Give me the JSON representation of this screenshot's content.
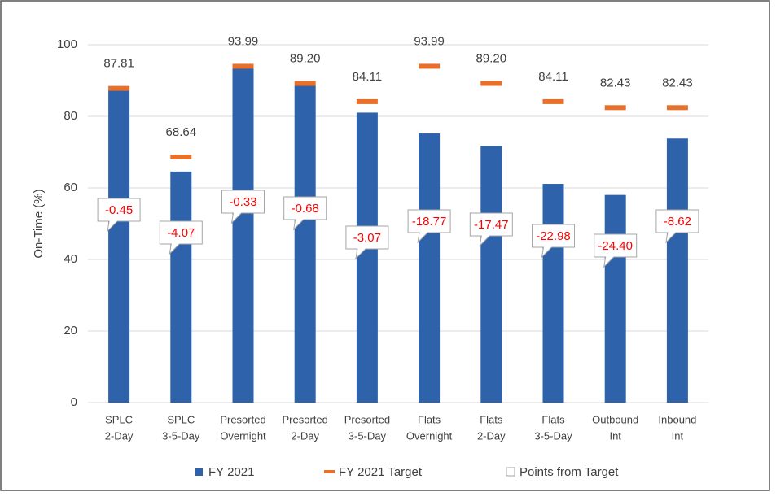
{
  "chart_data": {
    "type": "bar",
    "categories": [
      [
        "SPLC",
        "2-Day"
      ],
      [
        "SPLC",
        "3-5-Day"
      ],
      [
        "Presorted",
        "Overnight"
      ],
      [
        "Presorted",
        "2-Day"
      ],
      [
        "Presorted",
        "3-5-Day"
      ],
      [
        "Flats",
        "Overnight"
      ],
      [
        "Flats",
        "2-Day"
      ],
      [
        "Flats",
        "3-5-Day"
      ],
      [
        "Outbound",
        "Int"
      ],
      [
        "Inbound",
        "Int"
      ]
    ],
    "series": [
      {
        "name": "FY 2021",
        "color": "#2e63ab",
        "values": [
          87.36,
          64.57,
          93.66,
          88.52,
          81.04,
          75.22,
          71.73,
          61.13,
          58.03,
          73.81
        ]
      },
      {
        "name": "FY 2021 Target",
        "color": "#e8702a",
        "values": [
          87.81,
          68.64,
          93.99,
          89.2,
          84.11,
          93.99,
          89.2,
          84.11,
          82.43,
          82.43
        ],
        "value_labels": [
          "87.81",
          "68.64",
          "93.99",
          "89.20",
          "84.11",
          "93.99",
          "89.20",
          "84.11",
          "82.43",
          "82.43"
        ]
      },
      {
        "name": "Points from Target",
        "color": "#ff0000",
        "values": [
          -0.45,
          -4.07,
          -0.33,
          -0.68,
          -3.07,
          -18.77,
          -17.47,
          -22.98,
          -24.4,
          -8.62
        ],
        "value_labels": [
          "-0.45",
          "-4.07",
          "-0.33",
          "-0.68",
          "-3.07",
          "-18.77",
          "-17.47",
          "-22.98",
          "-24.40",
          "-8.62"
        ]
      }
    ],
    "y_label": "On-Time (%)",
    "ylim": [
      0,
      100
    ],
    "yticks": [
      0,
      20,
      40,
      60,
      80,
      100
    ],
    "grid": true,
    "legend": "bottom"
  }
}
